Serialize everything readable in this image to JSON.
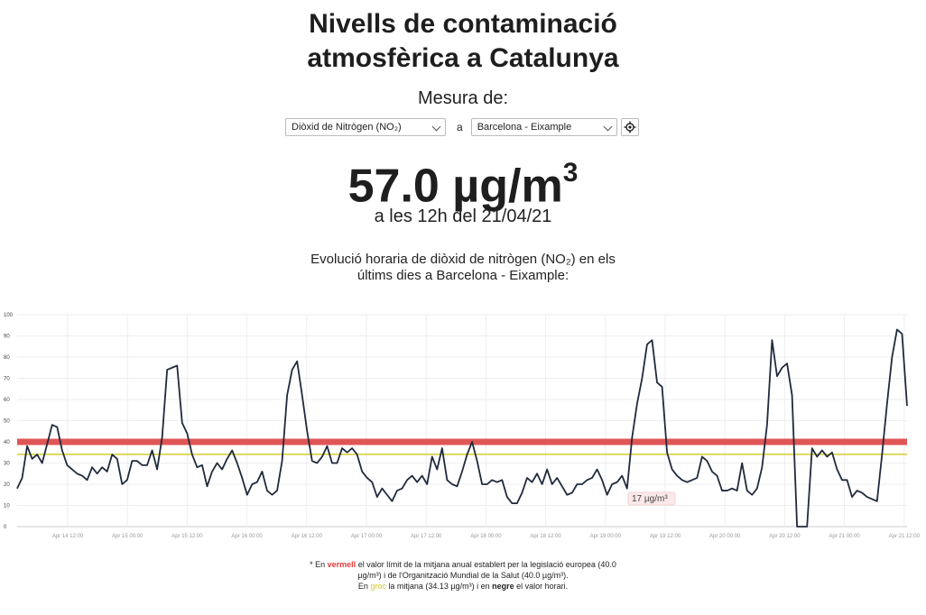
{
  "title": {
    "line1": "Nivells de contaminació",
    "line2": "atmosfèrica a Catalunya"
  },
  "measure_label": "Mesura de:",
  "controls": {
    "pollutant_value": "Diòxid de Nitrògen (NO₂)",
    "connector": "a",
    "station_value": "Barcelona - Eixample"
  },
  "current": {
    "value": "57.0",
    "unit": "µg/m",
    "unit_sup": "3",
    "time": "a les 12h del 21/04/21"
  },
  "chart_caption": {
    "line1": "Evolució horaria de diòxid de nitrògen (NO₂) en els",
    "line2": "últims dies a Barcelona - Eixample:"
  },
  "tooltip": {
    "label": "17 µg/m³"
  },
  "footnote": {
    "p1a": "* En ",
    "p1red": "vermell",
    "p1b": " el valor límit de la mitjana anual establert per la legislació europea (40.0",
    "p2": "µg/m³) i de l'Organització Mundial de la Salut (40.0 µg/m³).",
    "p3a": "En ",
    "p3yellow": "groc",
    "p3b": " la mitjana (34.13 µg/m³) i en ",
    "p3black": "negre",
    "p3c": " el valor horari."
  },
  "colors": {
    "limit_line": "#e05555",
    "mean_line": "#d8d040",
    "series_line": "#1f2a3c",
    "grid": "#eeeeee"
  },
  "chart_data": {
    "type": "line",
    "ylim": [
      0,
      100
    ],
    "yticks": [
      0,
      10,
      20,
      30,
      40,
      50,
      60,
      70,
      80,
      90,
      100
    ],
    "xticks": [
      "Apr 14 12:00",
      "Apr 15 00:00",
      "Apr 15 12:00",
      "Apr 16 00:00",
      "Apr 16 12:00",
      "Apr 17 00:00",
      "Apr 17 12:00",
      "Apr 18 00:00",
      "Apr 18 12:00",
      "Apr 19 00:00",
      "Apr 19 12:00",
      "Apr 20 00:00",
      "Apr 20 12:00",
      "Apr 21 00:00",
      "Apr 21 12:00"
    ],
    "limit": 40,
    "mean": 34.13,
    "series": [
      {
        "values": [
          18,
          23,
          38,
          32,
          34,
          30,
          39,
          48,
          47,
          36,
          29,
          27,
          25,
          24,
          22,
          28,
          25,
          28,
          26,
          34,
          32,
          20,
          22,
          31,
          31,
          29,
          29,
          36,
          27,
          42,
          74,
          75,
          76,
          49,
          44,
          34,
          28,
          29,
          19,
          26,
          30,
          27,
          32,
          36,
          30,
          23,
          15,
          20,
          21,
          26,
          17,
          15,
          17,
          31,
          62,
          74,
          78,
          62,
          45,
          31,
          30,
          33,
          38,
          30,
          30,
          37,
          35,
          37,
          34,
          26,
          23,
          21,
          14,
          18,
          15,
          12,
          17,
          18,
          22,
          24,
          21,
          24,
          20,
          33,
          27,
          37,
          22,
          20,
          19,
          26,
          34,
          40,
          31,
          20,
          20,
          22,
          21,
          22,
          14,
          11,
          11,
          16,
          23,
          21,
          25,
          20,
          27,
          20,
          23,
          19,
          15,
          16,
          20,
          20,
          22,
          23,
          27,
          22,
          15,
          20,
          21,
          24,
          18,
          42,
          58,
          70,
          86,
          88,
          68,
          66,
          35,
          27,
          24,
          22,
          21,
          22,
          23,
          33,
          31,
          26,
          24,
          17,
          17,
          18,
          17,
          30,
          17,
          15,
          18,
          28,
          48,
          88,
          71,
          75,
          77,
          62,
          0,
          0,
          0,
          37,
          33,
          36,
          33,
          35,
          27,
          22,
          22,
          14,
          17,
          16,
          14,
          13,
          12,
          34,
          58,
          80,
          93,
          91,
          57
        ]
      }
    ]
  }
}
